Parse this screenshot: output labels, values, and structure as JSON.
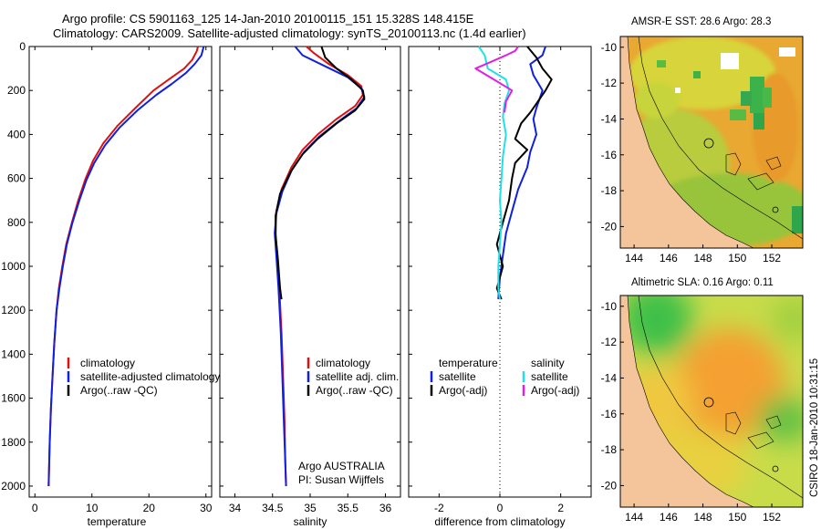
{
  "header": {
    "line1": "Argo profile: CS 5901163_125 14-Jan-2010 20100115_151 15.328S 148.415E",
    "line2": "Climatology: CARS2009. Satellite-adjusted climatology: synTS_20100113.nc (1.4d earlier)"
  },
  "colors": {
    "climatology": "#e01010",
    "satellite": "#1020e0",
    "argo": "#000000",
    "sal_satellite": "#20e0e8",
    "sal_argo": "#e020e0",
    "land": "#f4c49a"
  },
  "chart_data": [
    {
      "type": "line",
      "name": "temperature",
      "xlabel": "temperature",
      "ylabel": "",
      "xlim": [
        -1,
        31
      ],
      "ylim": [
        2050,
        0
      ],
      "xticks": [
        0,
        10,
        20,
        30
      ],
      "yticks": [
        0,
        200,
        400,
        600,
        800,
        1000,
        1200,
        1400,
        1600,
        1800,
        2000
      ],
      "legend": [
        "climatology",
        "satellite-adjusted climatology",
        "Argo(..raw -QC)"
      ],
      "series": [
        {
          "name": "climatology",
          "color": "#e01010",
          "points": [
            [
              28.6,
              0
            ],
            [
              28.4,
              20
            ],
            [
              27.6,
              60
            ],
            [
              26.2,
              100
            ],
            [
              23.5,
              150
            ],
            [
              20.8,
              200
            ],
            [
              17.6,
              280
            ],
            [
              14.5,
              360
            ],
            [
              12.0,
              440
            ],
            [
              10.2,
              520
            ],
            [
              8.9,
              600
            ],
            [
              7.6,
              700
            ],
            [
              6.5,
              800
            ],
            [
              5.5,
              900
            ],
            [
              4.8,
              1000
            ],
            [
              4.2,
              1100
            ],
            [
              3.8,
              1200
            ],
            [
              3.4,
              1350
            ],
            [
              3.1,
              1500
            ],
            [
              2.8,
              1650
            ],
            [
              2.6,
              1800
            ],
            [
              2.5,
              1900
            ],
            [
              2.4,
              2000
            ]
          ]
        },
        {
          "name": "satellite",
          "color": "#1020e0",
          "points": [
            [
              29.6,
              0
            ],
            [
              29.2,
              40
            ],
            [
              28.0,
              80
            ],
            [
              26.5,
              120
            ],
            [
              24.0,
              170
            ],
            [
              21.3,
              220
            ],
            [
              18.0,
              290
            ],
            [
              14.8,
              370
            ],
            [
              12.3,
              450
            ],
            [
              10.4,
              530
            ],
            [
              9.0,
              610
            ],
            [
              7.8,
              700
            ],
            [
              6.6,
              800
            ],
            [
              5.6,
              900
            ],
            [
              4.9,
              1000
            ],
            [
              4.3,
              1100
            ],
            [
              3.8,
              1200
            ],
            [
              3.4,
              1350
            ],
            [
              3.1,
              1500
            ],
            [
              2.8,
              1650
            ],
            [
              2.6,
              1800
            ],
            [
              2.5,
              1900
            ],
            [
              2.4,
              2000
            ]
          ]
        }
      ]
    },
    {
      "type": "line",
      "name": "salinity",
      "xlabel": "salinity",
      "ylabel": "",
      "xlim": [
        33.8,
        36.2
      ],
      "ylim": [
        2050,
        0
      ],
      "xticks": [
        34,
        34.5,
        35,
        35.5,
        36
      ],
      "legend": [
        "climatology",
        "satellite adj. clim.",
        "Argo(..raw -QC)"
      ],
      "notes": [
        "Argo AUSTRALIA",
        "PI: Susan Wijffels"
      ],
      "series": [
        {
          "name": "climatology",
          "color": "#e01010",
          "points": [
            [
              34.95,
              0
            ],
            [
              35.05,
              30
            ],
            [
              35.25,
              80
            ],
            [
              35.5,
              130
            ],
            [
              35.68,
              180
            ],
            [
              35.7,
              220
            ],
            [
              35.6,
              270
            ],
            [
              35.35,
              330
            ],
            [
              35.1,
              400
            ],
            [
              34.9,
              470
            ],
            [
              34.75,
              550
            ],
            [
              34.62,
              650
            ],
            [
              34.55,
              750
            ],
            [
              34.54,
              850
            ],
            [
              34.56,
              950
            ],
            [
              34.59,
              1100
            ],
            [
              34.62,
              1300
            ],
            [
              34.64,
              1500
            ],
            [
              34.66,
              1700
            ],
            [
              34.67,
              1900
            ],
            [
              34.68,
              2000
            ]
          ]
        },
        {
          "name": "satellite",
          "color": "#1020e0",
          "points": [
            [
              34.8,
              0
            ],
            [
              34.9,
              40
            ],
            [
              35.2,
              90
            ],
            [
              35.5,
              140
            ],
            [
              35.68,
              190
            ],
            [
              35.72,
              230
            ],
            [
              35.62,
              280
            ],
            [
              35.38,
              340
            ],
            [
              35.12,
              410
            ],
            [
              34.92,
              480
            ],
            [
              34.76,
              560
            ],
            [
              34.63,
              660
            ],
            [
              34.55,
              760
            ],
            [
              34.53,
              850
            ],
            [
              34.55,
              950
            ],
            [
              34.58,
              1100
            ],
            [
              34.61,
              1300
            ],
            [
              34.63,
              1500
            ],
            [
              34.65,
              1700
            ],
            [
              34.67,
              1900
            ],
            [
              34.68,
              2000
            ]
          ]
        },
        {
          "name": "argo",
          "color": "#000000",
          "points": [
            [
              35.15,
              0
            ],
            [
              35.2,
              50
            ],
            [
              35.35,
              100
            ],
            [
              35.55,
              150
            ],
            [
              35.7,
              200
            ],
            [
              35.72,
              240
            ],
            [
              35.6,
              290
            ],
            [
              35.35,
              350
            ],
            [
              35.1,
              420
            ],
            [
              34.9,
              490
            ],
            [
              34.74,
              570
            ],
            [
              34.6,
              670
            ],
            [
              34.54,
              770
            ],
            [
              34.54,
              860
            ],
            [
              34.57,
              960
            ],
            [
              34.6,
              1100
            ],
            [
              34.62,
              1150
            ]
          ]
        }
      ]
    },
    {
      "type": "line",
      "name": "difference",
      "xlabel": "difference from climatology",
      "ylabel": "",
      "xlim": [
        -3,
        3
      ],
      "ylim": [
        2050,
        0
      ],
      "xticks": [
        -2,
        0,
        2
      ],
      "legend_groups": [
        {
          "title": "temperature",
          "items": [
            "satellite",
            "Argo(-adj)"
          ]
        },
        {
          "title": "salinity",
          "items": [
            "satellite",
            "Argo(-adj)"
          ]
        }
      ],
      "series": [
        {
          "name": "temperature satellite",
          "color": "#1020e0",
          "points": [
            [
              1.5,
              0
            ],
            [
              1.4,
              40
            ],
            [
              1.0,
              80
            ],
            [
              1.1,
              130
            ],
            [
              1.4,
              200
            ],
            [
              1.2,
              280
            ],
            [
              1.1,
              330
            ],
            [
              1.2,
              400
            ],
            [
              1.0,
              480
            ],
            [
              0.9,
              550
            ],
            [
              0.6,
              650
            ],
            [
              0.4,
              750
            ],
            [
              0.2,
              850
            ],
            [
              0.1,
              950
            ],
            [
              0.0,
              1050
            ],
            [
              -0.05,
              1150
            ]
          ]
        },
        {
          "name": "temperature argo",
          "color": "#000000",
          "points": [
            [
              0.9,
              0
            ],
            [
              1.2,
              50
            ],
            [
              1.4,
              100
            ],
            [
              1.7,
              150
            ],
            [
              1.5,
              200
            ],
            [
              1.2,
              260
            ],
            [
              1.0,
              300
            ],
            [
              0.7,
              350
            ],
            [
              0.5,
              420
            ],
            [
              0.9,
              470
            ],
            [
              0.5,
              530
            ],
            [
              0.4,
              600
            ],
            [
              0.3,
              700
            ],
            [
              0.1,
              800
            ],
            [
              -0.1,
              900
            ],
            [
              0.1,
              1000
            ],
            [
              -0.1,
              1100
            ],
            [
              0.05,
              1150
            ]
          ]
        },
        {
          "name": "salinity satellite",
          "color": "#20e0e8",
          "points": [
            [
              -0.7,
              0
            ],
            [
              -0.5,
              40
            ],
            [
              -0.4,
              100
            ],
            [
              0.2,
              150
            ],
            [
              0.3,
              200
            ],
            [
              0.15,
              260
            ],
            [
              0.1,
              320
            ],
            [
              0.2,
              400
            ],
            [
              0.1,
              500
            ],
            [
              0.05,
              600
            ],
            [
              0.0,
              700
            ],
            [
              0.05,
              800
            ],
            [
              0.0,
              900
            ],
            [
              -0.05,
              1000
            ],
            [
              -0.05,
              1100
            ],
            [
              0.0,
              1150
            ]
          ]
        },
        {
          "name": "salinity argo",
          "color": "#e020e0",
          "points": [
            [
              0.6,
              0
            ],
            [
              0.5,
              20
            ],
            [
              0.2,
              40
            ],
            [
              -0.3,
              70
            ],
            [
              -0.8,
              100
            ],
            [
              -0.2,
              150
            ],
            [
              0.4,
              200
            ],
            [
              0.2,
              250
            ],
            [
              0.15,
              300
            ]
          ]
        }
      ]
    }
  ],
  "maps": [
    {
      "name": "sst",
      "title": "AMSR-E SST: 28.6  Argo: 28.3",
      "lon_ticks": [
        "144",
        "146",
        "148",
        "150",
        "152"
      ],
      "lat_ticks": [
        "-10",
        "-12",
        "-14",
        "-16",
        "-18",
        "-20"
      ],
      "lon_range": [
        143.2,
        153.8
      ],
      "lat_range": [
        -21.2,
        -9.4
      ],
      "argo_position": [
        148.415,
        -15.328
      ]
    },
    {
      "name": "sla",
      "title": "Altimetric SLA: 0.16  Argo: 0.11",
      "lon_ticks": [
        "144",
        "146",
        "148",
        "150",
        "152"
      ],
      "lat_ticks": [
        "-10",
        "-12",
        "-14",
        "-16",
        "-18",
        "-20"
      ],
      "lon_range": [
        143.2,
        153.8
      ],
      "lat_range": [
        -21.2,
        -9.4
      ],
      "argo_position": [
        148.415,
        -15.328
      ]
    }
  ],
  "credit": "CSIRO 18-Jan-2010 10:31:15"
}
